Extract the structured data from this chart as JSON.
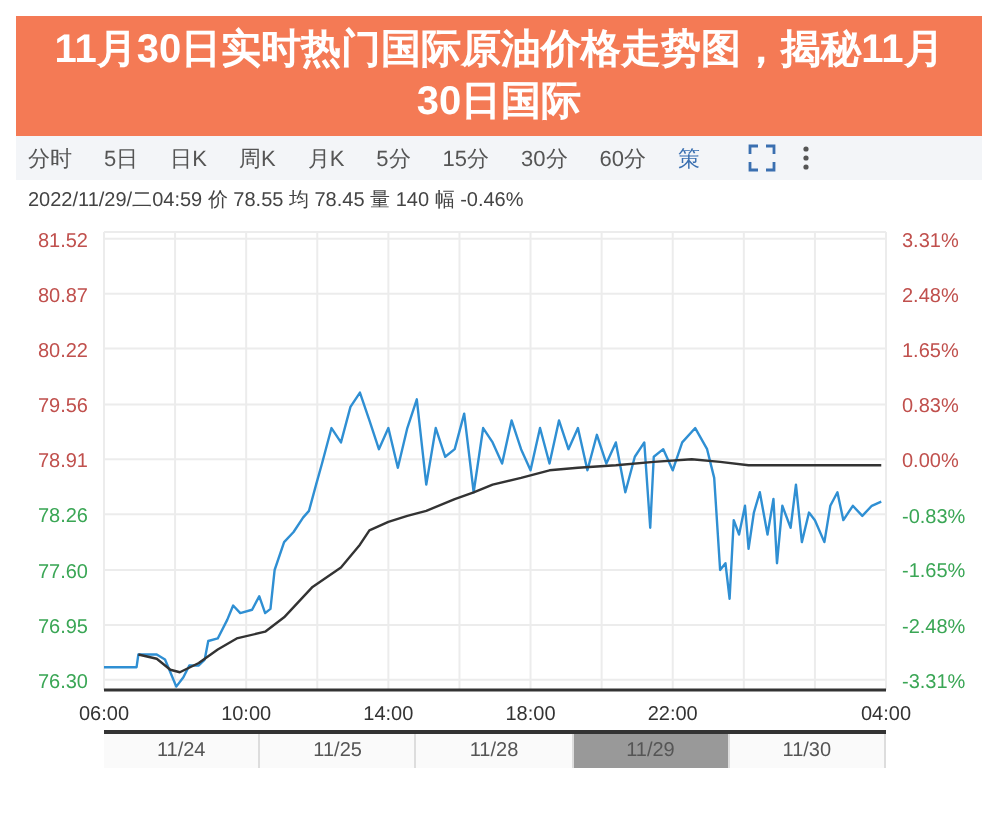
{
  "chart_data": {
    "type": "line",
    "title": "11月30日实时热门国际原油价格走势图，揭秘11月30日国际",
    "annotations": [
      "分时",
      "5日",
      "日K",
      "周K",
      "月K",
      "5分",
      "15分",
      "30分",
      "60分",
      "策",
      "2022/11/29/二04:59  价 78.55  均 78.45  量 140  幅 -0.46%",
      "11/24",
      "11/25",
      "11/28",
      "11/29",
      "11/30"
    ],
    "xlim": [
      "2022-11-28T06:00",
      "2022-11-29T04:00"
    ],
    "xticks": [
      {
        "value": "2022-11-28T06:00",
        "label": "06:00"
      },
      {
        "value": "2022-11-28T08:00",
        "label": null
      },
      {
        "value": "2022-11-28T10:00",
        "label": "10:00"
      },
      {
        "value": "2022-11-28T12:00",
        "label": null
      },
      {
        "value": "2022-11-28T14:00",
        "label": "14:00"
      },
      {
        "value": "2022-11-28T16:00",
        "label": null
      },
      {
        "value": "2022-11-28T18:00",
        "label": "18:00"
      },
      {
        "value": "2022-11-28T20:00",
        "label": null
      },
      {
        "value": "2022-11-28T22:00",
        "label": "22:00"
      },
      {
        "value": "2022-11-29T00:00",
        "label": null
      },
      {
        "value": "2022-11-29T02:00",
        "label": null
      },
      {
        "value": "2022-11-29T04:00",
        "label": "04:00"
      }
    ],
    "ylim": [
      76.18,
      81.6
    ],
    "yticks": [
      {
        "value": 76.3,
        "label": "76.30"
      },
      76.95,
      {
        "value": 77.6,
        "label": "77.60"
      },
      78.26,
      78.91,
      80.22,
      79.56,
      80.87,
      81.52
    ],
    "y2lim": [
      -3.46,
      3.41
    ],
    "y2ticks": [
      {
        "value": -3.31,
        "label": "-3.31%"
      },
      {
        "value": -2.48,
        "label": "-2.48%"
      },
      {
        "value": -1.65,
        "label": "-1.65%"
      },
      {
        "value": -0.83,
        "label": "-0.83%"
      },
      {
        "value": 0,
        "label": "0.00%"
      },
      {
        "value": 0.83,
        "label": "0.83%"
      },
      {
        "value": 1.65,
        "label": "1.65%"
      },
      {
        "value": 2.48,
        "label": "2.48%"
      },
      {
        "value": 3.31,
        "label": "3.31%"
      }
    ],
    "grid": true,
    "marker": "none",
    "line_style": "solid",
    "series": [
      {
        "color": "#2f8fd3",
        "x": [
          "2022-11-28T06:00",
          "2022-11-28T06:55",
          "2022-11-28T06:58",
          "2022-11-28T07:29",
          "2022-11-28T07:43",
          "2022-11-28T07:52",
          "2022-11-28T08:02",
          "2022-11-28T08:14",
          "2022-11-28T08:24",
          "2022-11-28T08:40",
          "2022-11-28T08:50",
          "2022-11-28T08:56",
          "2022-11-28T09:12",
          "2022-11-28T09:28",
          "2022-11-28T09:38",
          "2022-11-28T09:50",
          "2022-11-28T10:10",
          "2022-11-28T10:22",
          "2022-11-28T10:32",
          "2022-11-28T10:41",
          "2022-11-28T10:48",
          "2022-11-28T11:04",
          "2022-11-28T11:20",
          "2022-11-28T11:36",
          "2022-11-28T11:46",
          "2022-11-28T11:58",
          "2022-11-28T12:08",
          "2022-11-28T12:24",
          "2022-11-28T12:40",
          "2022-11-28T12:56",
          "2022-11-28T13:12",
          "2022-11-28T13:28",
          "2022-11-28T13:44",
          "2022-11-28T14:00",
          "2022-11-28T14:16",
          "2022-11-28T14:32",
          "2022-11-28T14:48",
          "2022-11-28T15:04",
          "2022-11-28T15:20",
          "2022-11-28T15:36",
          "2022-11-28T15:52",
          "2022-11-28T16:08",
          "2022-11-28T16:24",
          "2022-11-28T16:40",
          "2022-11-28T16:56",
          "2022-11-28T17:12",
          "2022-11-28T17:28",
          "2022-11-28T17:44",
          "2022-11-28T18:00",
          "2022-11-28T18:16",
          "2022-11-28T18:32",
          "2022-11-28T18:48",
          "2022-11-28T19:04",
          "2022-11-28T19:20",
          "2022-11-28T19:36",
          "2022-11-28T19:52",
          "2022-11-28T20:08",
          "2022-11-28T20:24",
          "2022-11-28T20:40",
          "2022-11-28T20:56",
          "2022-11-28T21:12",
          "2022-11-28T21:22",
          "2022-11-28T21:28",
          "2022-11-28T21:44",
          "2022-11-28T22:00",
          "2022-11-28T22:16",
          "2022-11-28T22:38",
          "2022-11-28T22:58",
          "2022-11-28T23:10",
          "2022-11-28T23:20",
          "2022-11-28T23:29",
          "2022-11-28T23:36",
          "2022-11-28T23:43",
          "2022-11-28T23:52",
          "2022-11-29T00:02",
          "2022-11-29T00:08",
          "2022-11-29T00:17",
          "2022-11-29T00:27",
          "2022-11-29T00:40",
          "2022-11-29T00:50",
          "2022-11-29T00:56",
          "2022-11-29T01:05",
          "2022-11-29T01:19",
          "2022-11-29T01:28",
          "2022-11-29T01:38",
          "2022-11-29T01:50",
          "2022-11-29T02:00",
          "2022-11-29T02:16",
          "2022-11-29T02:26",
          "2022-11-29T02:38",
          "2022-11-29T02:48",
          "2022-11-29T03:04",
          "2022-11-29T03:20",
          "2022-11-29T03:36",
          "2022-11-29T03:52"
        ],
        "values": [
          76.45,
          76.45,
          76.6,
          76.6,
          76.54,
          76.39,
          76.22,
          76.33,
          76.47,
          76.47,
          76.54,
          76.76,
          76.79,
          77.01,
          77.18,
          77.09,
          77.13,
          77.29,
          77.09,
          77.14,
          77.6,
          77.93,
          78.05,
          78.22,
          78.3,
          78.61,
          78.86,
          79.28,
          79.11,
          79.53,
          79.7,
          79.37,
          79.03,
          79.28,
          78.81,
          79.28,
          79.62,
          78.61,
          79.28,
          78.94,
          79.03,
          79.45,
          78.52,
          79.28,
          79.11,
          78.86,
          79.37,
          79.03,
          78.78,
          79.28,
          78.86,
          79.37,
          79.03,
          79.28,
          78.78,
          79.2,
          78.86,
          79.11,
          78.52,
          78.94,
          79.11,
          78.1,
          78.94,
          79.03,
          78.78,
          79.11,
          79.28,
          79.03,
          78.69,
          77.6,
          77.68,
          77.26,
          78.19,
          78.02,
          78.36,
          77.85,
          78.28,
          78.52,
          78.02,
          78.44,
          77.68,
          78.36,
          78.1,
          78.61,
          77.93,
          78.28,
          78.19,
          77.93,
          78.36,
          78.52,
          78.19,
          78.36,
          78.24,
          78.36,
          78.41
        ]
      },
      {
        "color": "#333333",
        "x": [
          "2022-11-28T06:58",
          "2022-11-28T07:29",
          "2022-11-28T07:52",
          "2022-11-28T08:08",
          "2022-11-28T08:40",
          "2022-11-28T09:12",
          "2022-11-28T09:44",
          "2022-11-28T10:32",
          "2022-11-28T11:04",
          "2022-11-28T11:52",
          "2022-11-28T12:40",
          "2022-11-28T13:12",
          "2022-11-28T13:28",
          "2022-11-28T14:00",
          "2022-11-28T14:32",
          "2022-11-28T15:04",
          "2022-11-28T15:52",
          "2022-11-28T16:24",
          "2022-11-28T16:56",
          "2022-11-28T17:44",
          "2022-11-28T18:32",
          "2022-11-28T19:20",
          "2022-11-28T20:24",
          "2022-11-28T21:28",
          "2022-11-28T22:32",
          "2022-11-28T23:20",
          "2022-11-29T00:08",
          "2022-11-29T01:44",
          "2022-11-29T03:52"
        ],
        "values": [
          76.6,
          76.55,
          76.42,
          76.39,
          76.5,
          76.66,
          76.79,
          76.87,
          77.04,
          77.4,
          77.63,
          77.9,
          78.07,
          78.17,
          78.24,
          78.3,
          78.44,
          78.52,
          78.61,
          78.69,
          78.78,
          78.81,
          78.84,
          78.88,
          78.91,
          78.88,
          78.84,
          78.84,
          78.84
        ]
      }
    ]
  }
}
